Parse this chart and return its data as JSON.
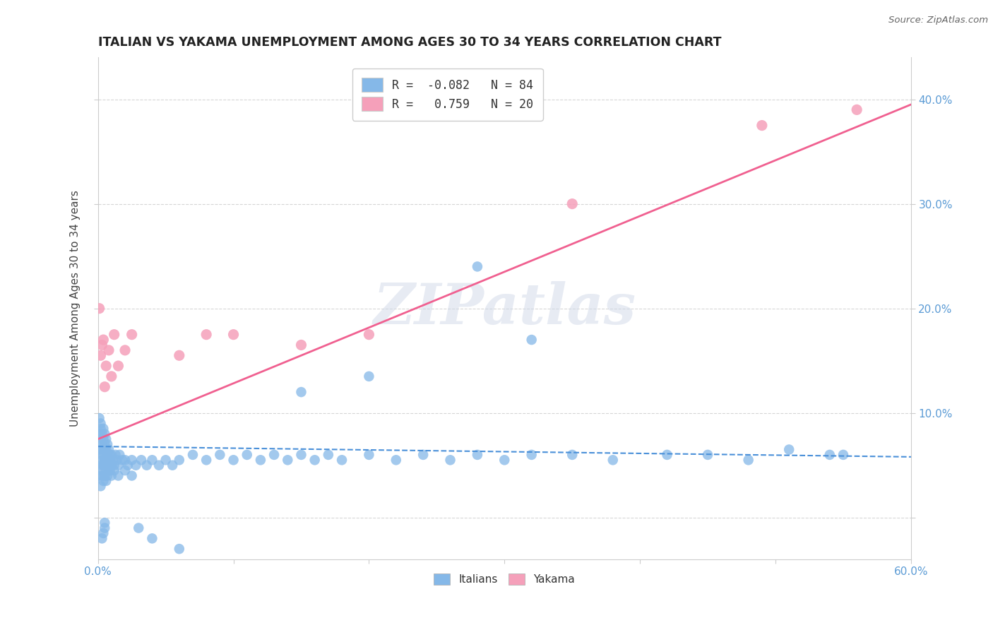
{
  "title": "ITALIAN VS YAKAMA UNEMPLOYMENT AMONG AGES 30 TO 34 YEARS CORRELATION CHART",
  "source_text": "Source: ZipAtlas.com",
  "ylabel": "Unemployment Among Ages 30 to 34 years",
  "xlim": [
    0.0,
    0.6
  ],
  "ylim": [
    -0.04,
    0.44
  ],
  "italian_color": "#85b8e8",
  "yakama_color": "#f5a0ba",
  "italian_line_color": "#4a90d9",
  "yakama_line_color": "#f06090",
  "legend_r_italian": "-0.082",
  "legend_n_italian": "84",
  "legend_r_yakama": "0.759",
  "legend_n_yakama": "20",
  "watermark": "ZIPatlas",
  "italian_x": [
    0.001,
    0.001,
    0.001,
    0.002,
    0.002,
    0.002,
    0.002,
    0.003,
    0.003,
    0.003,
    0.003,
    0.004,
    0.004,
    0.004,
    0.004,
    0.005,
    0.005,
    0.005,
    0.005,
    0.006,
    0.006,
    0.006,
    0.007,
    0.007,
    0.007,
    0.008,
    0.008,
    0.008,
    0.009,
    0.009,
    0.01,
    0.01,
    0.011,
    0.012,
    0.013,
    0.014,
    0.015,
    0.016,
    0.018,
    0.02,
    0.022,
    0.025,
    0.028,
    0.032,
    0.036,
    0.04,
    0.045,
    0.05,
    0.055,
    0.06,
    0.07,
    0.08,
    0.09,
    0.1,
    0.11,
    0.12,
    0.13,
    0.14,
    0.15,
    0.16,
    0.17,
    0.18,
    0.2,
    0.22,
    0.24,
    0.26,
    0.28,
    0.3,
    0.32,
    0.35,
    0.38,
    0.42,
    0.45,
    0.48,
    0.51,
    0.54,
    0.32,
    0.28,
    0.15,
    0.2,
    0.03,
    0.04,
    0.06,
    0.55
  ],
  "italian_y": [
    0.08,
    0.065,
    0.095,
    0.075,
    0.09,
    0.06,
    0.085,
    0.07,
    0.08,
    0.055,
    0.065,
    0.075,
    0.06,
    0.085,
    0.05,
    0.07,
    0.055,
    0.08,
    0.065,
    0.075,
    0.055,
    0.065,
    0.06,
    0.07,
    0.05,
    0.065,
    0.055,
    0.045,
    0.06,
    0.055,
    0.06,
    0.05,
    0.055,
    0.05,
    0.06,
    0.055,
    0.05,
    0.06,
    0.055,
    0.055,
    0.05,
    0.055,
    0.05,
    0.055,
    0.05,
    0.055,
    0.05,
    0.055,
    0.05,
    0.055,
    0.06,
    0.055,
    0.06,
    0.055,
    0.06,
    0.055,
    0.06,
    0.055,
    0.06,
    0.055,
    0.06,
    0.055,
    0.06,
    0.055,
    0.06,
    0.055,
    0.06,
    0.055,
    0.06,
    0.06,
    0.055,
    0.06,
    0.06,
    0.055,
    0.065,
    0.06,
    0.17,
    0.24,
    0.12,
    0.135,
    -0.01,
    -0.02,
    -0.03,
    0.06
  ],
  "italian_x_extra": [
    0.001,
    0.002,
    0.002,
    0.003,
    0.003,
    0.004,
    0.004,
    0.005,
    0.005,
    0.006,
    0.006,
    0.007,
    0.007,
    0.008,
    0.009,
    0.01,
    0.012,
    0.015,
    0.02,
    0.025,
    0.005,
    0.005,
    0.004,
    0.003
  ],
  "italian_y_extra": [
    0.04,
    0.03,
    0.05,
    0.04,
    0.045,
    0.035,
    0.05,
    0.04,
    0.055,
    0.045,
    0.035,
    0.055,
    0.04,
    0.05,
    0.045,
    0.04,
    0.045,
    0.04,
    0.045,
    0.04,
    -0.005,
    -0.01,
    -0.015,
    -0.02
  ],
  "yakama_x": [
    0.001,
    0.002,
    0.003,
    0.004,
    0.005,
    0.006,
    0.008,
    0.01,
    0.012,
    0.015,
    0.02,
    0.025,
    0.06,
    0.08,
    0.1,
    0.15,
    0.2,
    0.35,
    0.49,
    0.56
  ],
  "yakama_y": [
    0.2,
    0.155,
    0.165,
    0.17,
    0.125,
    0.145,
    0.16,
    0.135,
    0.175,
    0.145,
    0.16,
    0.175,
    0.155,
    0.175,
    0.175,
    0.165,
    0.175,
    0.3,
    0.375,
    0.39
  ],
  "italian_line_x": [
    0.0,
    0.6
  ],
  "italian_line_y": [
    0.068,
    0.058
  ],
  "yakama_line_x": [
    0.0,
    0.6
  ],
  "yakama_line_y": [
    0.075,
    0.395
  ]
}
